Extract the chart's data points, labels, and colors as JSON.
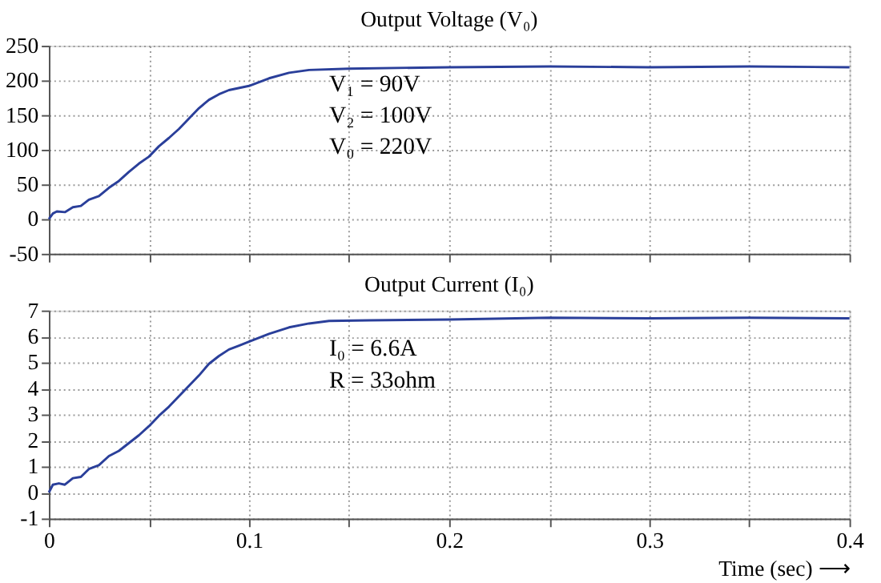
{
  "chart_data": [
    {
      "type": "line",
      "title": "Output Voltage (V₀)",
      "x": [
        0,
        0.002,
        0.004,
        0.008,
        0.012,
        0.016,
        0.02,
        0.025,
        0.03,
        0.035,
        0.04,
        0.045,
        0.05,
        0.055,
        0.06,
        0.065,
        0.07,
        0.075,
        0.08,
        0.085,
        0.09,
        0.1,
        0.11,
        0.12,
        0.13,
        0.15,
        0.2,
        0.25,
        0.3,
        0.35,
        0.4
      ],
      "series": [
        {
          "color": "#2a3f9a",
          "values": [
            0,
            8,
            11,
            10,
            17,
            19,
            28,
            33,
            45,
            55,
            68,
            80,
            90,
            105,
            117,
            130,
            145,
            160,
            172,
            180,
            186,
            192,
            203,
            211,
            215,
            217,
            219,
            220,
            219,
            220,
            219
          ]
        }
      ],
      "xlim": [
        0,
        0.4
      ],
      "xticks": [
        0,
        {
          "value": 0.05,
          "label": null
        },
        0.1,
        {
          "value": 0.15,
          "label": null
        },
        0.2,
        {
          "value": 0.25,
          "label": null
        },
        0.3,
        {
          "value": 0.35,
          "label": null
        },
        0.4
      ],
      "ylim": [
        -50,
        250
      ],
      "yticks": [
        -50,
        0,
        50,
        100,
        150,
        200,
        250
      ],
      "grid": true,
      "tick_labels": "y",
      "marker": "none",
      "line_style": "solid",
      "annotations": [
        "V₁ = 90V",
        "V₂ = 100V",
        "V₀ = 220V"
      ]
    },
    {
      "type": "line",
      "title": "Output Current (I₀)",
      "xlabel": "Time (sec) ⟶",
      "x": [
        0,
        0.002,
        0.005,
        0.008,
        0.012,
        0.016,
        0.02,
        0.025,
        0.03,
        0.035,
        0.04,
        0.045,
        0.05,
        0.055,
        0.06,
        0.065,
        0.07,
        0.075,
        0.08,
        0.085,
        0.09,
        0.095,
        0.1,
        0.11,
        0.12,
        0.13,
        0.14,
        0.16,
        0.2,
        0.25,
        0.3,
        0.35,
        0.4
      ],
      "series": [
        {
          "color": "#2a3f9a",
          "values": [
            0,
            0.3,
            0.35,
            0.3,
            0.55,
            0.6,
            0.9,
            1.05,
            1.4,
            1.6,
            1.9,
            2.2,
            2.55,
            2.95,
            3.3,
            3.7,
            4.1,
            4.5,
            4.95,
            5.25,
            5.5,
            5.65,
            5.8,
            6.1,
            6.35,
            6.5,
            6.6,
            6.62,
            6.65,
            6.72,
            6.7,
            6.72,
            6.7
          ]
        }
      ],
      "xlim": [
        0,
        0.4
      ],
      "xticks": [
        0,
        {
          "value": 0.05,
          "label": null
        },
        0.1,
        {
          "value": 0.15,
          "label": null
        },
        0.2,
        {
          "value": 0.25,
          "label": null
        },
        0.3,
        {
          "value": 0.35,
          "label": null
        },
        0.4
      ],
      "ylim": [
        -1,
        7
      ],
      "yticks": [
        -1,
        0,
        1,
        2,
        3,
        4,
        5,
        6,
        7
      ],
      "grid": true,
      "marker": "none",
      "line_style": "solid",
      "annotations": [
        "I₀ = 6.6A",
        "R = 33ohm"
      ]
    }
  ]
}
